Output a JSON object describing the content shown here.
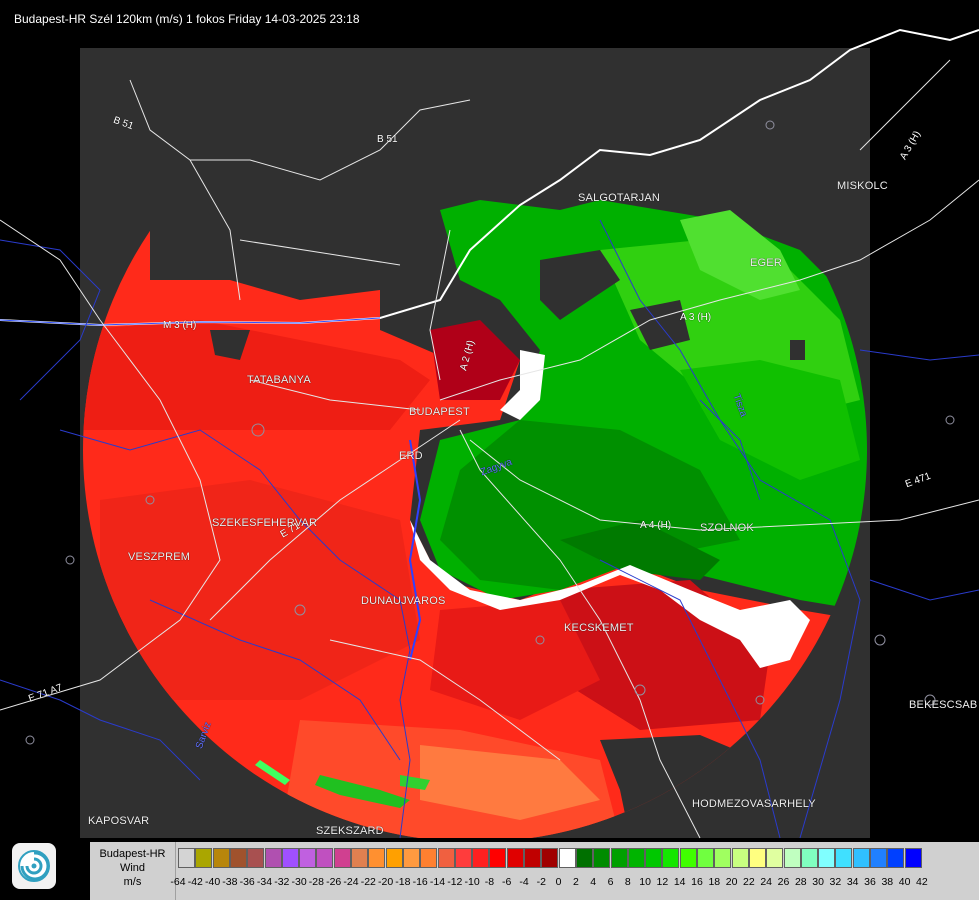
{
  "header": {
    "title": "Budapest-HR Szél 120km (m/s) 1 fokos Friday 14-03-2025 23:18"
  },
  "map": {
    "cities": [
      {
        "key": "salgotarjan",
        "label": "SALGOTARJAN"
      },
      {
        "key": "miskolc",
        "label": "MISKOLC"
      },
      {
        "key": "eger",
        "label": "EGER"
      },
      {
        "key": "tatabanya",
        "label": "TATABANYA"
      },
      {
        "key": "budapest",
        "label": "BUDAPEST"
      },
      {
        "key": "erd",
        "label": "ERD"
      },
      {
        "key": "szekesfehervar",
        "label": "SZEKESFEHERVAR"
      },
      {
        "key": "veszprem",
        "label": "VESZPREM"
      },
      {
        "key": "dunaujvaros",
        "label": "DUNAUJVAROS"
      },
      {
        "key": "kecskemet",
        "label": "KECSKEMET"
      },
      {
        "key": "szolnok",
        "label": "SZOLNOK"
      },
      {
        "key": "bekescsaba",
        "label": "BEKESCSAB"
      },
      {
        "key": "kaposvar",
        "label": "KAPOSVAR"
      },
      {
        "key": "szekszard",
        "label": "SZEKSZARD"
      },
      {
        "key": "hodmezovasarhely",
        "label": "HODMEZOVASARHELY"
      }
    ],
    "roads": [
      {
        "key": "b51a",
        "label": "B 51"
      },
      {
        "key": "b51b",
        "label": "B 51"
      },
      {
        "key": "m3a",
        "label": "M 3 (H)"
      },
      {
        "key": "m3b",
        "label": "A 3 (H)"
      },
      {
        "key": "m3c",
        "label": "A 3 (H)"
      },
      {
        "key": "m2",
        "label": "A 2 (H)"
      },
      {
        "key": "m4",
        "label": "A 4 (H)"
      },
      {
        "key": "e71",
        "label": "E 71"
      },
      {
        "key": "e71b",
        "label": "E 71 A7"
      },
      {
        "key": "e471",
        "label": "E 471"
      }
    ],
    "rivers": [
      {
        "key": "zagyva",
        "label": "Zagyva"
      },
      {
        "key": "tisza",
        "label": "Tisza"
      },
      {
        "key": "sarviz",
        "label": "Sarviz"
      }
    ]
  },
  "legend": {
    "title_lines": [
      "Budapest-HR",
      "Wind",
      "m/s"
    ],
    "colors": [
      "#d4d4d4",
      "#aaa600",
      "#b8860b",
      "#a0522d",
      "#a85050",
      "#b050b0",
      "#a050ff",
      "#c060e0",
      "#c050c0",
      "#d04090",
      "#e08050",
      "#ff9030",
      "#ffa000",
      "#ff9a40",
      "#ff8030",
      "#f06040",
      "#ff3c3c",
      "#ff2020",
      "#ff0000",
      "#e00000",
      "#c00000",
      "#a00000",
      "#ffffff",
      "#007000",
      "#008c00",
      "#00a000",
      "#00b400",
      "#00c800",
      "#14e600",
      "#40ff00",
      "#70ff40",
      "#a0ff60",
      "#c8ff80",
      "#ffff80",
      "#e0ffa0",
      "#c0ffc0",
      "#80ffc0",
      "#80ffff",
      "#40e0ff",
      "#30c0ff",
      "#2080ff",
      "#0040ff",
      "#0000ff"
    ],
    "ticks": [
      "-64",
      "-42",
      "-40",
      "-38",
      "-36",
      "-34",
      "-32",
      "-30",
      "-28",
      "-26",
      "-24",
      "-22",
      "-20",
      "-18",
      "-16",
      "-14",
      "-12",
      "-10",
      "-8",
      "-6",
      "-4",
      "-2",
      "0",
      "2",
      "4",
      "6",
      "8",
      "10",
      "12",
      "14",
      "16",
      "18",
      "20",
      "22",
      "24",
      "26",
      "28",
      "30",
      "32",
      "34",
      "36",
      "38",
      "40",
      "42"
    ]
  }
}
